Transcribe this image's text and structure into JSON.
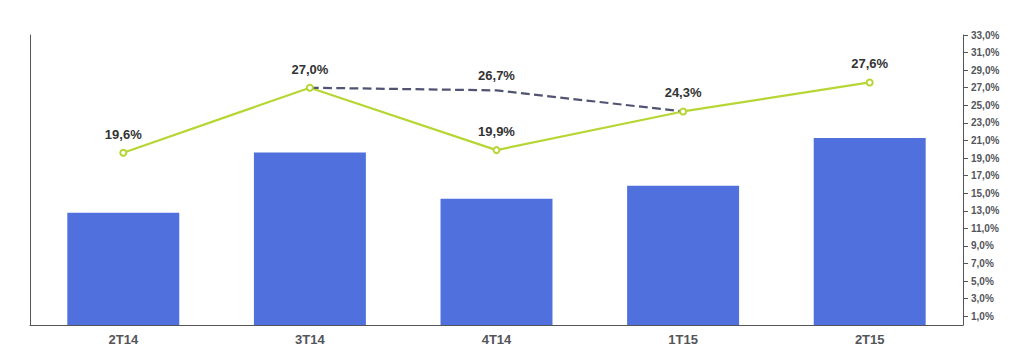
{
  "chart_data": {
    "type": "bar",
    "categories": [
      "2T14",
      "3T14",
      "4T14",
      "1T15",
      "2T15"
    ],
    "ylim": [
      0,
      400
    ],
    "y2lim": [
      0,
      33
    ],
    "y2ticks": [
      {
        "value": 1,
        "label": "1,0%"
      },
      {
        "value": 3,
        "label": "3,0%"
      },
      {
        "value": 5,
        "label": "5,0%"
      },
      {
        "value": 7,
        "label": "7,0%"
      },
      {
        "value": 9,
        "label": "9,0%"
      },
      {
        "value": 11,
        "label": "11,0%"
      },
      {
        "value": 13,
        "label": "13,0%"
      },
      {
        "value": 15,
        "label": "15,0%"
      },
      {
        "value": 17,
        "label": "17,0%"
      },
      {
        "value": 19,
        "label": "19,0%"
      },
      {
        "value": 21,
        "label": "21,0%"
      },
      {
        "value": 23,
        "label": "23,0%"
      },
      {
        "value": 25,
        "label": "25,0%"
      },
      {
        "value": 27,
        "label": "27,0%"
      },
      {
        "value": 29,
        "label": "29,0%"
      },
      {
        "value": 31,
        "label": "31,0%"
      },
      {
        "value": 33,
        "label": "33,0%"
      }
    ],
    "grid": false,
    "series": [
      {
        "type": "bar",
        "values": [
          155,
          238,
          174,
          192,
          258
        ]
      },
      {
        "type": "line",
        "axis": "y2",
        "line_style": "solid",
        "values": [
          19.6,
          27.0,
          19.9,
          24.3,
          27.6
        ],
        "value_labels": [
          "19,6%",
          "27,0%",
          "19,9%",
          "24,3%",
          "27,6%"
        ]
      },
      {
        "type": "line",
        "axis": "y2",
        "line_style": "dashed",
        "values": [
          null,
          27.0,
          26.7,
          24.3,
          null
        ],
        "value_labels": [
          null,
          null,
          "26,7%",
          null,
          null
        ]
      }
    ]
  }
}
